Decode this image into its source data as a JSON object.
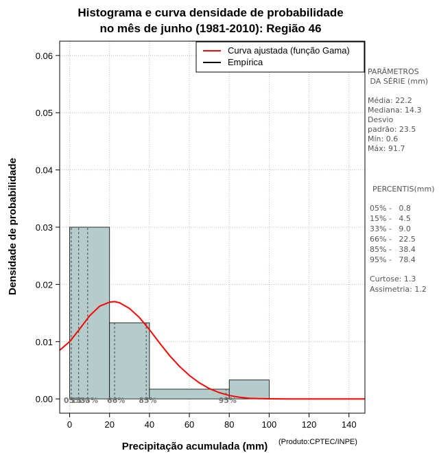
{
  "chart_data": {
    "type": "bar",
    "title_lines": [
      "Histograma e curva densidade de probabilidade",
      "no mês de junho (1981-2010): Região 46"
    ],
    "xlabel": "Precipitação acumulada (mm)",
    "ylabel": "Densidade de probabilidade",
    "xlim": [
      -5,
      148
    ],
    "ylim": [
      -0.0025,
      0.0625
    ],
    "xticks": [
      0,
      20,
      40,
      60,
      80,
      100,
      120,
      140
    ],
    "yticks": [
      0.0,
      0.01,
      0.02,
      0.03,
      0.04,
      0.05,
      0.06
    ],
    "ytick_labels": [
      "0.00",
      "0.01",
      "0.02",
      "0.03",
      "0.04",
      "0.05",
      "0.06"
    ],
    "grid": true,
    "histogram": {
      "bin_edges": [
        0,
        20,
        40,
        80,
        100
      ],
      "densities": [
        0.03,
        0.0133,
        0.0017,
        0.0033
      ],
      "fill_color": "#b4cccc"
    },
    "series": [
      {
        "name": "Curva ajustada (função Gama)",
        "color": "#ff0000",
        "x": [
          -5,
          0,
          5,
          10,
          15,
          20,
          22.5,
          25,
          30,
          35,
          40,
          45,
          50,
          55,
          60,
          65,
          70,
          75,
          80,
          85,
          90,
          95,
          100,
          110,
          120,
          130,
          148
        ],
        "y": [
          0.0085,
          0.01,
          0.0122,
          0.0145,
          0.0162,
          0.0169,
          0.017,
          0.0168,
          0.0158,
          0.0142,
          0.0121,
          0.0098,
          0.0076,
          0.0057,
          0.0041,
          0.0028,
          0.0018,
          0.0011,
          0.0006,
          0.0003,
          0.0001,
          5e-05,
          2e-05,
          0.0,
          0.0,
          0.0,
          0.0
        ]
      },
      {
        "name": "Empírica",
        "color": "#000000"
      }
    ],
    "legend_position": "top-right",
    "percentiles": [
      {
        "label": "05%",
        "value": 0.8
      },
      {
        "label": "15%",
        "value": 4.5
      },
      {
        "label": "33%",
        "value": 9.0
      },
      {
        "label": "66%",
        "value": 22.5
      },
      {
        "label": "85%",
        "value": 38.4
      },
      {
        "label": "95%",
        "value": 78.4
      }
    ]
  },
  "side_panel": {
    "params_title": [
      "PARÂMETROS",
      " DA SÉRIE (mm)"
    ],
    "params_lines": [
      "Média:  22.2",
      "Mediana:  14.3",
      "Desvio",
      "padrão:  23.5",
      "Mín:  0.6",
      "Máx:  91.7"
    ],
    "percentis_title": "PERCENTIS(mm)",
    "percentis_lines": [
      "05% -   0.8",
      "15% -   4.5",
      "33% -   9.0",
      "66% -   22.5",
      "85% -   38.4",
      "95% -   78.4"
    ],
    "stats_lines": [
      "Curtose:  1.3",
      "Assimetria:  1.2"
    ]
  },
  "credit": "(Produto:CPTEC/INPE)"
}
